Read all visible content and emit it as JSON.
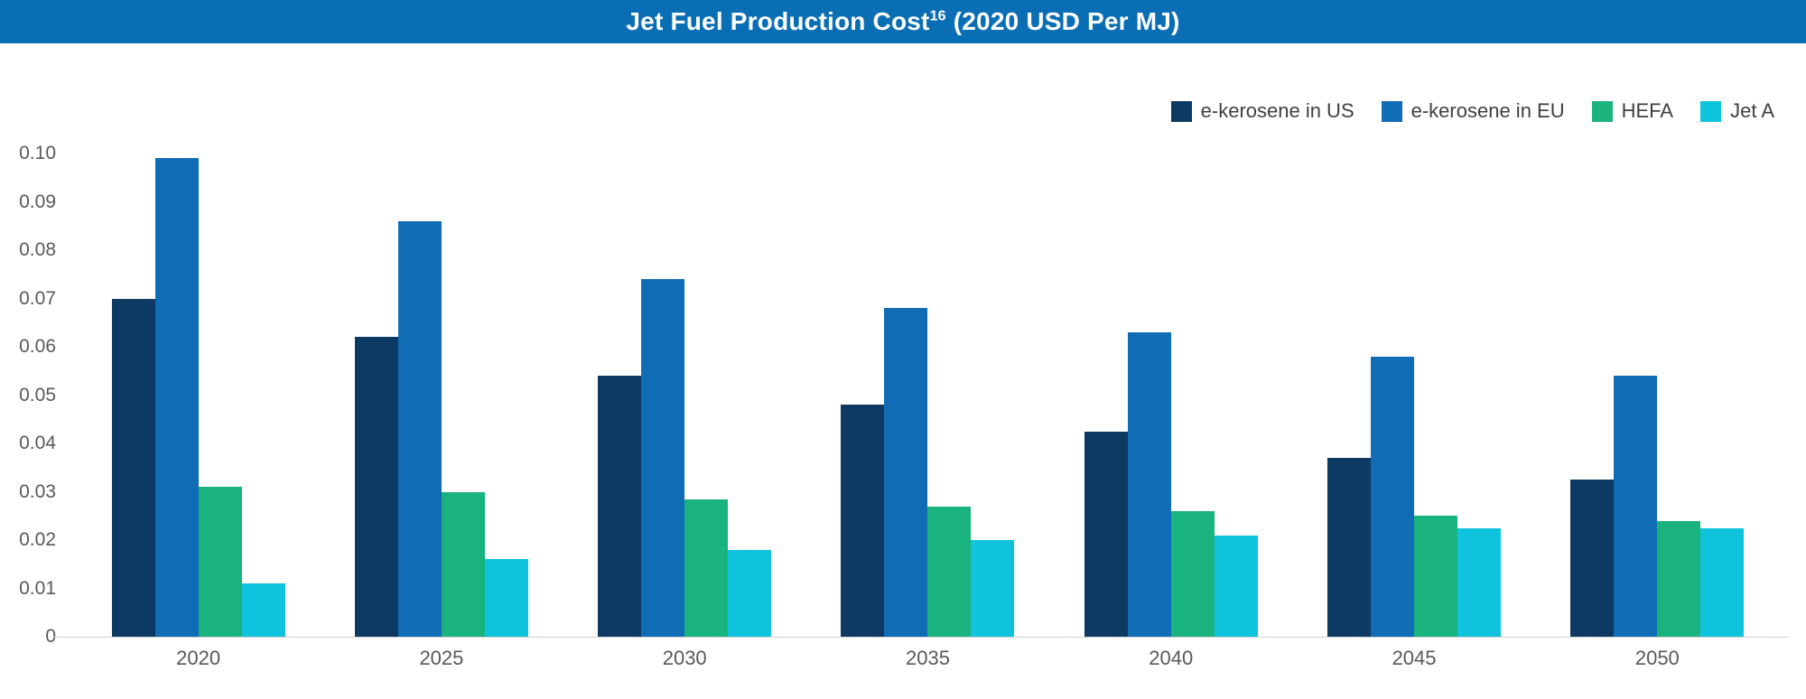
{
  "header": {
    "title_main": "Jet Fuel Production Cost",
    "title_sup": "16",
    "title_suffix": " (2020 USD Per MJ)"
  },
  "colors": {
    "header_bg": "#0a6eb4",
    "axis_line": "#cfcfcf",
    "tick_text": "#595959"
  },
  "chart_data": {
    "type": "bar",
    "title": "Jet Fuel Production Cost (2020 USD Per MJ)",
    "xlabel": "",
    "ylabel": "",
    "ylim": [
      0,
      0.1
    ],
    "grid": false,
    "legend_position": "top-right",
    "categories": [
      "2020",
      "2025",
      "2030",
      "2035",
      "2040",
      "2045",
      "2050"
    ],
    "yticks": [
      "0.10",
      "0.09",
      "0.08",
      "0.07",
      "0.06",
      "0.05",
      "0.04",
      "0.03",
      "0.02",
      "0.01",
      "0"
    ],
    "series": [
      {
        "name": "e-kerosene in US",
        "color": "#0d3a63",
        "values": [
          0.07,
          0.062,
          0.054,
          0.048,
          0.0425,
          0.037,
          0.0325
        ]
      },
      {
        "name": "e-kerosene in EU",
        "color": "#106cb5",
        "values": [
          0.099,
          0.086,
          0.074,
          0.068,
          0.063,
          0.058,
          0.054
        ]
      },
      {
        "name": "HEFA",
        "color": "#1ab37e",
        "values": [
          0.031,
          0.03,
          0.0285,
          0.027,
          0.026,
          0.025,
          0.024
        ]
      },
      {
        "name": "Jet A",
        "color": "#10c3dd",
        "values": [
          0.011,
          0.016,
          0.018,
          0.02,
          0.021,
          0.0225,
          0.0225
        ]
      }
    ]
  }
}
